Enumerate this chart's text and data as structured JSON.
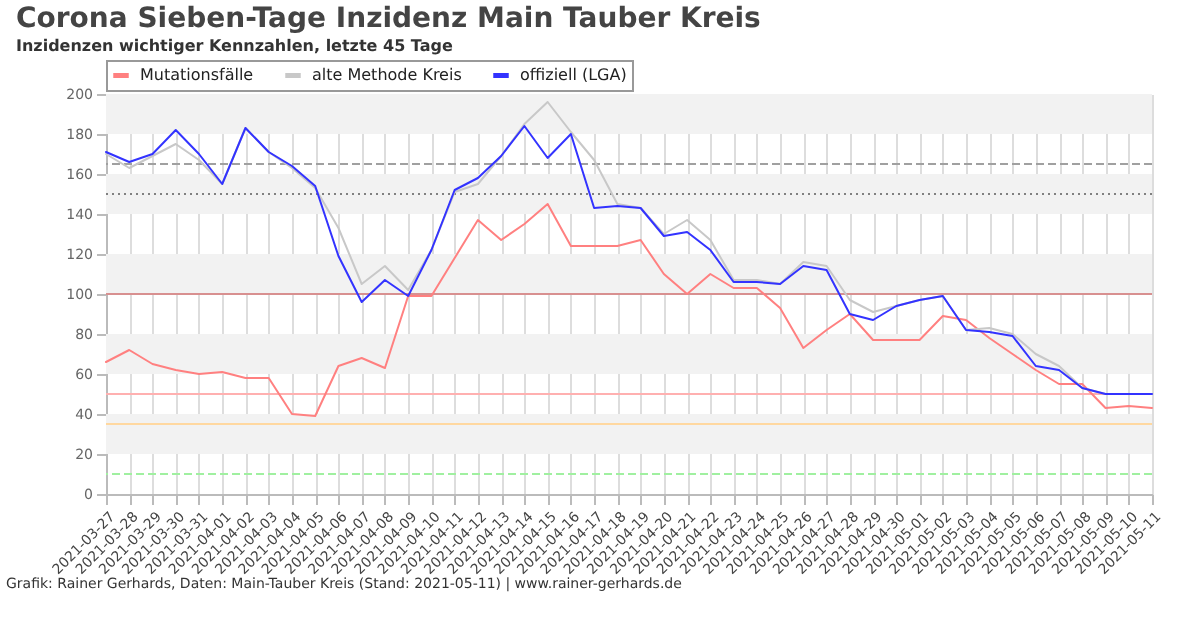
{
  "chart_data": {
    "type": "line",
    "title": "Corona Sieben-Tage Inzidenz Main Tauber Kreis",
    "subtitle": "Inzidenzen wichtiger Kennzahlen, letzte 45 Tage",
    "categories": [
      "2021-03-27",
      "2021-03-28",
      "2021-03-29",
      "2021-03-30",
      "2021-03-31",
      "2021-04-01",
      "2021-04-02",
      "2021-04-03",
      "2021-04-04",
      "2021-04-05",
      "2021-04-06",
      "2021-04-07",
      "2021-04-08",
      "2021-04-09",
      "2021-04-10",
      "2021-04-11",
      "2021-04-12",
      "2021-04-13",
      "2021-04-14",
      "2021-04-15",
      "2021-04-16",
      "2021-04-17",
      "2021-04-18",
      "2021-04-19",
      "2021-04-20",
      "2021-04-21",
      "2021-04-22",
      "2021-04-23",
      "2021-04-24",
      "2021-04-25",
      "2021-04-26",
      "2021-04-27",
      "2021-04-28",
      "2021-04-29",
      "2021-04-30",
      "2021-05-01",
      "2021-05-02",
      "2021-05-03",
      "2021-05-04",
      "2021-05-05",
      "2021-05-06",
      "2021-05-07",
      "2021-05-08",
      "2021-05-09",
      "2021-05-10",
      "2021-05-11"
    ],
    "series": [
      {
        "name": "Mutationsfälle",
        "color": "#ff8080",
        "values": [
          66,
          72,
          65,
          62,
          60,
          61,
          58,
          58,
          40,
          39,
          64,
          68,
          63,
          99,
          99,
          118,
          137,
          127,
          135,
          145,
          124,
          124,
          124,
          127,
          110,
          100,
          110,
          103,
          103,
          93,
          73,
          82,
          90,
          77,
          77,
          77,
          89,
          87,
          78,
          70,
          62,
          55,
          55,
          43,
          44,
          43
        ]
      },
      {
        "name": "alte Methode Kreis",
        "color": "#c8c8c8",
        "values": [
          170,
          163,
          169,
          175,
          167,
          155,
          183,
          171,
          163,
          153,
          133,
          105,
          114,
          102,
          122,
          151,
          155,
          169,
          185,
          196,
          181,
          167,
          145,
          143,
          130,
          137,
          127,
          107,
          107,
          105,
          116,
          114,
          97,
          91,
          94,
          97,
          99,
          82,
          83,
          80,
          70,
          64,
          53,
          50,
          50,
          50
        ]
      },
      {
        "name": "offiziell (LGA)",
        "color": "#3333ff",
        "values": [
          171,
          166,
          170,
          182,
          170,
          155,
          183,
          171,
          164,
          154,
          119,
          96,
          107,
          99,
          122,
          152,
          158,
          169,
          184,
          168,
          180,
          143,
          144,
          143,
          129,
          131,
          122,
          106,
          106,
          105,
          114,
          112,
          90,
          87,
          94,
          97,
          99,
          82,
          81,
          79,
          64,
          62,
          53,
          50,
          50,
          50
        ]
      }
    ],
    "ylim": [
      0,
      200
    ],
    "yticks": [
      0,
      20,
      40,
      60,
      80,
      100,
      120,
      140,
      160,
      180,
      200
    ],
    "grid": "x",
    "legend": "top",
    "bands": [
      {
        "axis": "y",
        "from": 20,
        "to": 40,
        "color": "#f2f2f2"
      },
      {
        "axis": "y",
        "from": 60,
        "to": 80,
        "color": "#f2f2f2"
      },
      {
        "axis": "y",
        "from": 100,
        "to": 120,
        "color": "#f2f2f2"
      },
      {
        "axis": "y",
        "from": 140,
        "to": 160,
        "color": "#f2f2f2"
      },
      {
        "axis": "y",
        "from": 180,
        "to": 200,
        "color": "#f2f2f2"
      }
    ],
    "ref_lines": [
      {
        "axis": "y",
        "value": 10,
        "color": "#a0f0a0",
        "line_style": "dashed"
      },
      {
        "axis": "y",
        "value": 35,
        "color": "#ffd8a0",
        "line_style": "solid"
      },
      {
        "axis": "y",
        "value": 50,
        "color": "#ffb0b0",
        "line_style": "solid"
      },
      {
        "axis": "y",
        "value": 100,
        "color": "#d89090",
        "line_style": "solid"
      },
      {
        "axis": "y",
        "value": 150,
        "color": "#808080",
        "line_style": "dotted"
      },
      {
        "axis": "y",
        "value": 165,
        "color": "#a0a0a0",
        "line_style": "dashed"
      }
    ],
    "annotations": [
      "Grafik: Rainer Gerhards, Daten: Main-Tauber Kreis (Stand: 2021-05-11) | www.rainer-gerhards.de"
    ]
  }
}
